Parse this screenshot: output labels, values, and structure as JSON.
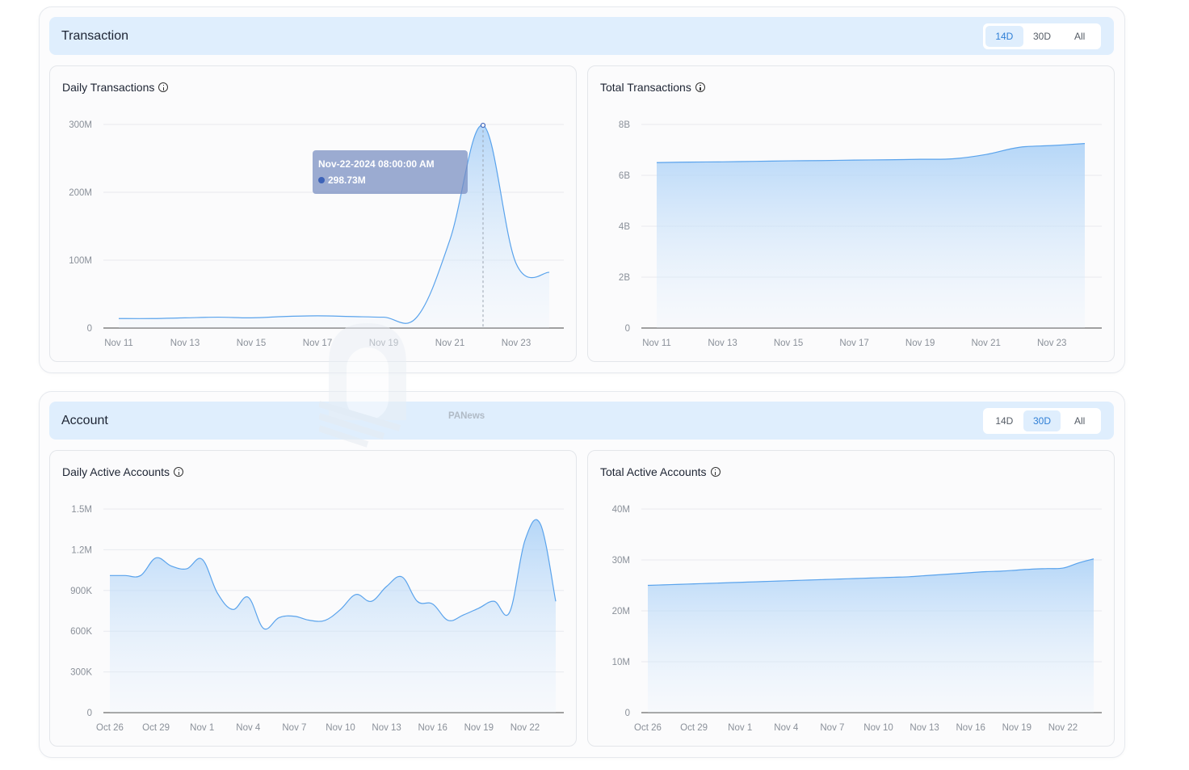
{
  "transaction": {
    "title": "Transaction",
    "ranges": [
      "14D",
      "30D",
      "All"
    ],
    "active_range": "14D",
    "daily": {
      "title": "Daily Transactions",
      "tooltip": {
        "date": "Nov-22-2024 08:00:00 AM",
        "value": "298.73M"
      },
      "chart_data": {
        "type": "area",
        "x": [
          "Nov 11",
          "Nov 12",
          "Nov 13",
          "Nov 14",
          "Nov 15",
          "Nov 16",
          "Nov 17",
          "Nov 18",
          "Nov 19",
          "Nov 20",
          "Nov 21",
          "Nov 22",
          "Nov 23",
          "Nov 24"
        ],
        "ticks": [
          "Nov 11",
          "Nov 13",
          "Nov 15",
          "Nov 17",
          "Nov 19",
          "Nov 21",
          "Nov 23"
        ],
        "values": [
          14000000,
          14000000,
          15000000,
          16000000,
          15000000,
          17000000,
          18000000,
          17000000,
          16000000,
          16000000,
          130000000,
          298730000,
          95000000,
          82000000
        ],
        "yticks": [
          "0",
          "100M",
          "200M",
          "300M"
        ],
        "ylim": [
          0,
          300000000
        ],
        "color": "#5aa3ec"
      }
    },
    "total": {
      "title": "Total Transactions",
      "chart_data": {
        "type": "area",
        "x": [
          "Nov 11",
          "Nov 12",
          "Nov 13",
          "Nov 14",
          "Nov 15",
          "Nov 16",
          "Nov 17",
          "Nov 18",
          "Nov 19",
          "Nov 20",
          "Nov 21",
          "Nov 22",
          "Nov 23",
          "Nov 24"
        ],
        "ticks": [
          "Nov 11",
          "Nov 13",
          "Nov 15",
          "Nov 17",
          "Nov 19",
          "Nov 21",
          "Nov 23"
        ],
        "values": [
          6500000000,
          6520000000,
          6530000000,
          6550000000,
          6570000000,
          6580000000,
          6600000000,
          6610000000,
          6630000000,
          6650000000,
          6820000000,
          7100000000,
          7170000000,
          7250000000
        ],
        "yticks": [
          "0",
          "2B",
          "4B",
          "6B",
          "8B"
        ],
        "ylim": [
          0,
          8000000000
        ],
        "color": "#5aa3ec"
      }
    }
  },
  "account": {
    "title": "Account",
    "ranges": [
      "14D",
      "30D",
      "All"
    ],
    "active_range": "30D",
    "daily": {
      "title": "Daily Active Accounts",
      "chart_data": {
        "type": "area",
        "x": [
          "Oct 26",
          "Oct 27",
          "Oct 28",
          "Oct 29",
          "Oct 30",
          "Oct 31",
          "Nov 1",
          "Nov 2",
          "Nov 3",
          "Nov 4",
          "Nov 5",
          "Nov 6",
          "Nov 7",
          "Nov 8",
          "Nov 9",
          "Nov 10",
          "Nov 11",
          "Nov 12",
          "Nov 13",
          "Nov 14",
          "Nov 15",
          "Nov 16",
          "Nov 17",
          "Nov 18",
          "Nov 19",
          "Nov 20",
          "Nov 21",
          "Nov 22",
          "Nov 23",
          "Nov 24"
        ],
        "ticks": [
          "Oct 26",
          "Oct 29",
          "Nov 1",
          "Nov 4",
          "Nov 7",
          "Nov 10",
          "Nov 13",
          "Nov 16",
          "Nov 19",
          "Nov 22"
        ],
        "values": [
          1010000,
          1010000,
          1010000,
          1140000,
          1080000,
          1060000,
          1130000,
          880000,
          760000,
          850000,
          620000,
          700000,
          710000,
          680000,
          680000,
          760000,
          870000,
          820000,
          930000,
          1000000,
          820000,
          800000,
          680000,
          720000,
          770000,
          820000,
          740000,
          1270000,
          1390000,
          820000
        ],
        "yticks": [
          "0",
          "300K",
          "600K",
          "900K",
          "1.2M",
          "1.5M"
        ],
        "ylim": [
          0,
          1500000
        ],
        "color": "#5aa3ec"
      }
    },
    "total": {
      "title": "Total Active Accounts",
      "chart_data": {
        "type": "area",
        "x": [
          "Oct 26",
          "Oct 27",
          "Oct 28",
          "Oct 29",
          "Oct 30",
          "Oct 31",
          "Nov 1",
          "Nov 2",
          "Nov 3",
          "Nov 4",
          "Nov 5",
          "Nov 6",
          "Nov 7",
          "Nov 8",
          "Nov 9",
          "Nov 10",
          "Nov 11",
          "Nov 12",
          "Nov 13",
          "Nov 14",
          "Nov 15",
          "Nov 16",
          "Nov 17",
          "Nov 18",
          "Nov 19",
          "Nov 20",
          "Nov 21",
          "Nov 22",
          "Nov 23",
          "Nov 24"
        ],
        "ticks": [
          "Oct 26",
          "Oct 29",
          "Nov 1",
          "Nov 4",
          "Nov 7",
          "Nov 10",
          "Nov 13",
          "Nov 16",
          "Nov 19",
          "Nov 22"
        ],
        "values": [
          25000000,
          25100000,
          25200000,
          25300000,
          25400000,
          25500000,
          25600000,
          25700000,
          25800000,
          25900000,
          26000000,
          26100000,
          26200000,
          26300000,
          26400000,
          26500000,
          26600000,
          26700000,
          26900000,
          27100000,
          27300000,
          27500000,
          27700000,
          27800000,
          28000000,
          28200000,
          28300000,
          28400000,
          29400000,
          30200000
        ],
        "yticks": [
          "0",
          "10M",
          "20M",
          "30M",
          "40M"
        ],
        "ylim": [
          0,
          40000000
        ],
        "color": "#5aa3ec"
      }
    }
  },
  "watermark": {
    "text": "PANews"
  }
}
